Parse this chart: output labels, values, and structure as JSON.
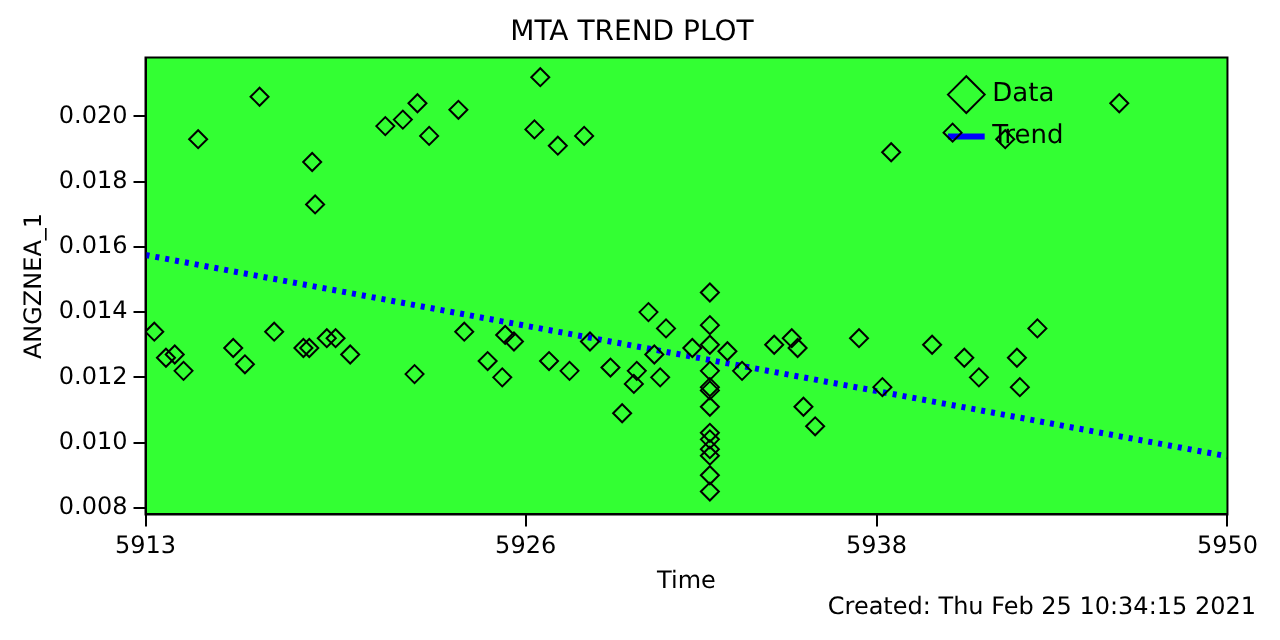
{
  "chart_data": {
    "type": "scatter",
    "title": "MTA TREND PLOT",
    "xlabel": "Time",
    "ylabel": "ANGZNEA_1",
    "annotations": [
      "Created: Thu Feb 25 10:34:15 2021"
    ],
    "xlim": [
      5913,
      5950
    ],
    "xticks": [
      5913,
      5926,
      5938,
      5950
    ],
    "ylim": [
      0.0078,
      0.0218
    ],
    "yticks": [
      {
        "value": 0.008,
        "label": "0.008"
      },
      {
        "value": 0.01,
        "label": "0.010"
      },
      {
        "value": 0.012,
        "label": "0.012"
      },
      {
        "value": 0.014,
        "label": "0.014"
      },
      {
        "value": 0.016,
        "label": "0.016"
      },
      {
        "value": 0.018,
        "label": "0.018"
      },
      {
        "value": 0.02,
        "label": "0.020"
      }
    ],
    "legend": "top right",
    "grid": false,
    "series": [
      {
        "name": "Data",
        "type": "scatter",
        "marker": "diamond",
        "color": "#000000",
        "x": [
          5913.3,
          5913.7,
          5914.0,
          5914.3,
          5914.8,
          5916.0,
          5916.4,
          5916.9,
          5917.4,
          5918.4,
          5918.6,
          5918.7,
          5918.8,
          5919.2,
          5919.5,
          5920.0,
          5921.2,
          5921.8,
          5922.2,
          5922.3,
          5922.7,
          5923.7,
          5923.9,
          5924.7,
          5925.2,
          5925.3,
          5925.6,
          5926.3,
          5926.5,
          5926.8,
          5927.1,
          5927.5,
          5928.0,
          5928.2,
          5928.9,
          5929.3,
          5929.7,
          5929.8,
          5930.2,
          5930.4,
          5930.6,
          5930.8,
          5931.7,
          5932.3,
          5932.3,
          5932.3,
          5932.3,
          5932.3,
          5932.3,
          5932.3,
          5932.3,
          5932.3,
          5932.3,
          5932.3,
          5932.3,
          5932.3,
          5932.9,
          5933.4,
          5934.5,
          5935.1,
          5935.3,
          5935.5,
          5935.9,
          5937.4,
          5938.2,
          5938.5,
          5939.9,
          5940.6,
          5941.0,
          5941.5,
          5942.4,
          5942.8,
          5942.9,
          5943.5,
          5946.3
        ],
        "values": [
          0.0134,
          0.0126,
          0.0127,
          0.0122,
          0.0193,
          0.0129,
          0.0124,
          0.0206,
          0.0134,
          0.0129,
          0.0129,
          0.0186,
          0.0173,
          0.0132,
          0.0132,
          0.0127,
          0.0197,
          0.0199,
          0.0121,
          0.0204,
          0.0194,
          0.0202,
          0.0134,
          0.0125,
          0.012,
          0.0133,
          0.0131,
          0.0196,
          0.0212,
          0.0125,
          0.0191,
          0.0122,
          0.0194,
          0.0131,
          0.0123,
          0.0109,
          0.0118,
          0.0122,
          0.014,
          0.0127,
          0.012,
          0.0135,
          0.0129,
          0.0146,
          0.0136,
          0.013,
          0.0122,
          0.0117,
          0.0116,
          0.0111,
          0.0103,
          0.0101,
          0.0098,
          0.0096,
          0.009,
          0.0085,
          0.0128,
          0.0122,
          0.013,
          0.0132,
          0.0129,
          0.0111,
          0.0105,
          0.0132,
          0.0117,
          0.0189,
          0.013,
          0.0195,
          0.0126,
          0.012,
          0.0193,
          0.0126,
          0.0117,
          0.0135,
          0.0204
        ]
      },
      {
        "name": "Trend",
        "type": "line",
        "marker": "none",
        "line_style": "dotted",
        "color": "#0000ff",
        "x": [
          5913,
          5950
        ],
        "values": [
          0.01575,
          0.00958
        ]
      }
    ]
  }
}
